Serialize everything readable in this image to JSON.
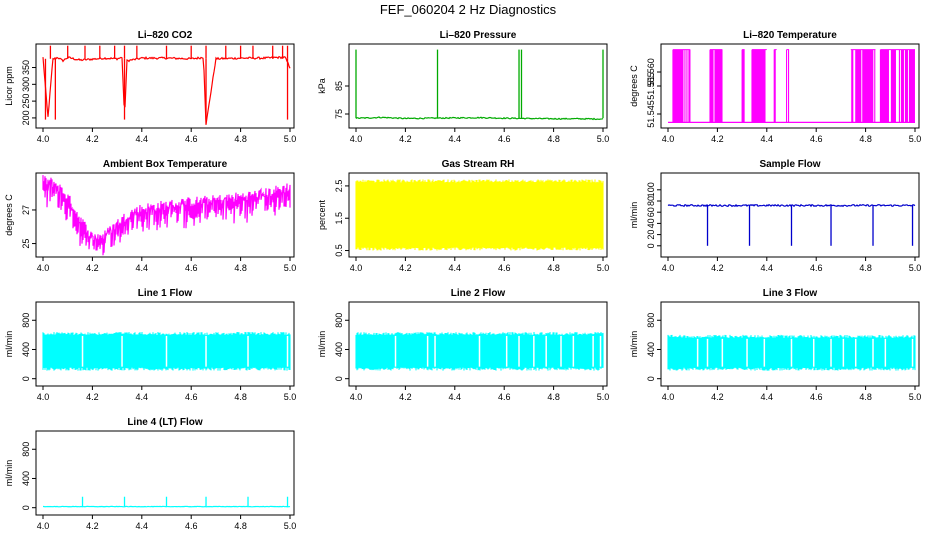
{
  "title": "FEF_060204  2 Hz Diagnostics",
  "chart_data": [
    {
      "id": "co2",
      "type": "line",
      "title": "Li–820 CO2",
      "ylabel": "Licor ppm",
      "color": "#ff0000",
      "xlim": [
        4.0,
        5.0
      ],
      "ylim": [
        170,
        420
      ],
      "xticks": [
        "4.0",
        "4.2",
        "4.4",
        "4.6",
        "4.8",
        "5.0"
      ],
      "yticks": [
        "200",
        "250",
        "300",
        "350"
      ],
      "series": [
        {
          "x": [
            4.0,
            4.02,
            4.04,
            4.06,
            4.08,
            4.1,
            4.15,
            4.2,
            4.25,
            4.3,
            4.32,
            4.33,
            4.34,
            4.4,
            4.5,
            4.6,
            4.65,
            4.66,
            4.7,
            4.8,
            4.9,
            4.95,
            4.98,
            5.0
          ],
          "values": [
            380,
            200,
            375,
            380,
            370,
            380,
            372,
            375,
            378,
            376,
            380,
            200,
            370,
            378,
            378,
            376,
            380,
            180,
            376,
            378,
            378,
            380,
            380,
            350
          ]
        }
      ],
      "baseline": 376,
      "noise": 3,
      "spikes": [
        4.03,
        4.1,
        4.17,
        4.23,
        4.29,
        4.33,
        4.38,
        4.5,
        4.6,
        4.66,
        4.74,
        4.8,
        4.85,
        4.93,
        4.97,
        4.99
      ],
      "spike_to": 415,
      "dips": [
        4.01,
        4.05,
        4.33,
        4.66,
        4.99
      ],
      "dip_to": 195
    },
    {
      "id": "pressure",
      "type": "line",
      "title": "Li–820 Pressure",
      "ylabel": "kPa",
      "color": "#00aa00",
      "xlim": [
        4.0,
        5.0
      ],
      "ylim": [
        70,
        100
      ],
      "xticks": [
        "4.0",
        "4.2",
        "4.4",
        "4.6",
        "4.8",
        "5.0"
      ],
      "yticks": [
        "75",
        "85"
      ],
      "series": [
        {
          "x": [
            4.0,
            4.05,
            4.1,
            4.2,
            4.3,
            4.4,
            4.5,
            4.6,
            4.7,
            4.8,
            4.9,
            5.0
          ],
          "values": [
            73.5,
            73.6,
            73.8,
            73.4,
            73.5,
            73.6,
            73.7,
            73.5,
            73.4,
            73.3,
            73.3,
            73.2
          ]
        }
      ],
      "baseline": 73.5,
      "noise": 0.2,
      "spikes": [
        4.0,
        4.33,
        4.66,
        4.67,
        5.0
      ],
      "spike_to": 98
    },
    {
      "id": "temp",
      "type": "line",
      "title": "Li–820 Temperature",
      "ylabel": "degrees C",
      "color": "#ff00ff",
      "xlim": [
        4.0,
        5.0
      ],
      "ylim": [
        51.54,
        51.57
      ],
      "xticks": [
        "4.0",
        "4.2",
        "4.4",
        "4.6",
        "4.8",
        "5.0"
      ],
      "yticks": [
        "51.545",
        "51.555",
        "51.560"
      ],
      "series": [
        {
          "x": [
            4.0,
            5.0
          ],
          "values": [
            51.542,
            51.542
          ]
        }
      ],
      "baseline": 51.542,
      "noise": 0,
      "bands": [
        [
          4.02,
          4.09
        ],
        [
          4.17,
          4.22
        ],
        [
          4.3,
          4.31
        ],
        [
          4.34,
          4.4
        ],
        [
          4.43,
          4.44
        ],
        [
          4.48,
          4.49
        ],
        [
          4.74,
          4.84
        ],
        [
          4.86,
          5.0
        ]
      ],
      "band_top": 51.568
    },
    {
      "id": "ambient",
      "type": "line",
      "title": "Ambient Box Temperature",
      "ylabel": "degrees C",
      "color": "#ff00ff",
      "xlim": [
        4.0,
        5.0
      ],
      "ylim": [
        24.2,
        29.2
      ],
      "xticks": [
        "4.0",
        "4.2",
        "4.4",
        "4.6",
        "4.8",
        "5.0"
      ],
      "yticks": [
        "25",
        "27"
      ],
      "series": [
        {
          "x": [
            4.0,
            4.05,
            4.1,
            4.15,
            4.2,
            4.25,
            4.3,
            4.35,
            4.4,
            4.5,
            4.6,
            4.7,
            4.8,
            4.9,
            5.0
          ],
          "values": [
            28.8,
            28.6,
            27.8,
            26.5,
            25.4,
            25.5,
            26.2,
            26.8,
            27.1,
            27.3,
            27.5,
            27.6,
            27.8,
            28.0,
            28.4
          ]
        }
      ],
      "noise": 0.3,
      "dropnoise": 1.4
    },
    {
      "id": "rh",
      "type": "line",
      "title": "Gas Stream RH",
      "ylabel": "percent",
      "color": "#ffff00",
      "xlim": [
        4.0,
        5.0
      ],
      "ylim": [
        0.3,
        2.9
      ],
      "xticks": [
        "4.0",
        "4.2",
        "4.4",
        "4.6",
        "4.8",
        "5.0"
      ],
      "yticks": [
        "0.5",
        "1.5",
        "2.5"
      ],
      "series": [
        {
          "x": [
            4.0,
            5.0
          ],
          "values": [
            1.5,
            1.5
          ]
        }
      ],
      "fill_low": 0.5,
      "fill_high": 2.7
    },
    {
      "id": "sample",
      "type": "line",
      "title": "Sample Flow",
      "ylabel": "ml/min",
      "color": "#0000cc",
      "xlim": [
        4.0,
        5.0
      ],
      "ylim": [
        -20,
        130
      ],
      "xticks": [
        "4.0",
        "4.2",
        "4.4",
        "4.6",
        "4.8",
        "5.0"
      ],
      "yticks": [
        "0",
        "20",
        "40",
        "60",
        "80",
        "100"
      ],
      "series": [
        {
          "x": [
            4.0,
            5.0
          ],
          "values": [
            72,
            72
          ]
        }
      ],
      "baseline": 72,
      "noise": 1.5,
      "dips": [
        4.16,
        4.33,
        4.5,
        4.66,
        4.83,
        4.99
      ],
      "dip_to": 0
    },
    {
      "id": "line1",
      "type": "line",
      "title": "Line 1 Flow",
      "ylabel": "ml/min",
      "color": "#00ffff",
      "xlim": [
        4.0,
        5.0
      ],
      "ylim": [
        -100,
        1050
      ],
      "xticks": [
        "4.0",
        "4.2",
        "4.4",
        "4.6",
        "4.8",
        "5.0"
      ],
      "yticks": [
        "0",
        "400",
        "800"
      ],
      "series": [
        {
          "x": [
            4.0,
            5.0
          ],
          "values": [
            400,
            400
          ]
        }
      ],
      "fill_low": 110,
      "fill_high": 640,
      "gaps": [
        4.16,
        4.32,
        4.5,
        4.66,
        4.83,
        4.99
      ]
    },
    {
      "id": "line2",
      "type": "line",
      "title": "Line 2 Flow",
      "ylabel": "ml/min",
      "color": "#00ffff",
      "xlim": [
        4.0,
        5.0
      ],
      "ylim": [
        -100,
        1050
      ],
      "xticks": [
        "4.0",
        "4.2",
        "4.4",
        "4.6",
        "4.8",
        "5.0"
      ],
      "yticks": [
        "0",
        "400",
        "800"
      ],
      "series": [
        {
          "x": [
            4.0,
            5.0
          ],
          "values": [
            400,
            400
          ]
        }
      ],
      "fill_low": 110,
      "fill_high": 640,
      "gaps": [
        4.16,
        4.29,
        4.32,
        4.5,
        4.61,
        4.66,
        4.72,
        4.77,
        4.83,
        4.88,
        4.96,
        4.99
      ]
    },
    {
      "id": "line3",
      "type": "line",
      "title": "Line 3 Flow",
      "ylabel": "ml/min",
      "color": "#00ffff",
      "xlim": [
        4.0,
        5.0
      ],
      "ylim": [
        -100,
        1050
      ],
      "xticks": [
        "4.0",
        "4.2",
        "4.4",
        "4.6",
        "4.8",
        "5.0"
      ],
      "yticks": [
        "0",
        "400",
        "800"
      ],
      "series": [
        {
          "x": [
            4.0,
            5.0
          ],
          "values": [
            400,
            400
          ]
        }
      ],
      "fill_low": 110,
      "fill_high": 600,
      "gaps": [
        4.12,
        4.16,
        4.22,
        4.32,
        4.39,
        4.5,
        4.59,
        4.66,
        4.71,
        4.76,
        4.83,
        4.88,
        4.99
      ]
    },
    {
      "id": "line4",
      "type": "line",
      "title": "Line 4 (LT) Flow",
      "ylabel": "ml/min",
      "color": "#00ffff",
      "xlim": [
        4.0,
        5.0
      ],
      "ylim": [
        -100,
        1050
      ],
      "xticks": [
        "4.0",
        "4.2",
        "4.4",
        "4.6",
        "4.8",
        "5.0"
      ],
      "yticks": [
        "0",
        "400",
        "800"
      ],
      "series": [
        {
          "x": [
            4.0,
            5.0
          ],
          "values": [
            15,
            15
          ]
        }
      ],
      "baseline": 15,
      "noise": 3,
      "spikes": [
        4.16,
        4.33,
        4.5,
        4.66,
        4.83,
        4.99
      ],
      "spike_to": 150
    }
  ]
}
